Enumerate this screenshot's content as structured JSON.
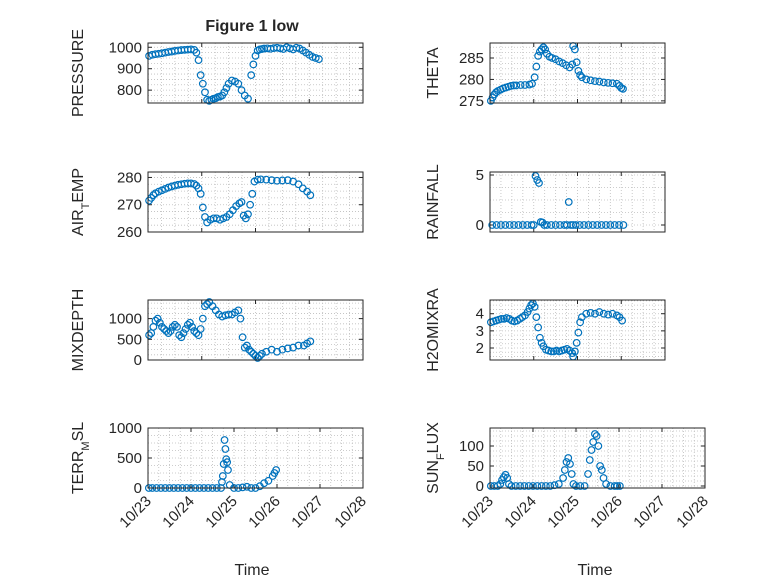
{
  "figure_title": "Figure 1 low",
  "colors": {
    "marker": "#0072BD",
    "axis": "#262626",
    "grid": "#bdbdbd"
  },
  "chart_data": [
    {
      "type": "scatter",
      "ylabel": "PRESSURE",
      "xlim": [
        "10/23",
        "10/27"
      ],
      "ylim": [
        740,
        1020
      ],
      "yticks": [
        "800",
        "900",
        "1000"
      ],
      "ytick_values": [
        800,
        900,
        1000
      ],
      "xticks": [
        "10/23",
        "10/24",
        "10/25",
        "10/26",
        "10/27"
      ],
      "grid": true,
      "x": [
        0.02,
        0.08,
        0.14,
        0.2,
        0.26,
        0.32,
        0.38,
        0.44,
        0.5,
        0.56,
        0.62,
        0.68,
        0.74,
        0.8,
        0.86,
        0.9,
        0.94,
        0.98,
        1.02,
        1.06,
        1.1,
        1.14,
        1.18,
        1.22,
        1.26,
        1.3,
        1.34,
        1.38,
        1.42,
        1.46,
        1.5,
        1.56,
        1.62,
        1.68,
        1.74,
        1.8,
        1.86,
        1.92,
        1.96,
        2.0,
        2.04,
        2.08,
        2.12,
        2.16,
        2.22,
        2.28,
        2.34,
        2.4,
        2.46,
        2.52,
        2.58,
        2.64,
        2.7,
        2.76,
        2.82,
        2.88,
        2.94,
        3.0,
        3.06,
        3.12,
        3.18
      ],
      "y": [
        960,
        965,
        968,
        970,
        972,
        975,
        978,
        980,
        983,
        985,
        987,
        988,
        989,
        990,
        988,
        975,
        940,
        870,
        830,
        790,
        755,
        750,
        755,
        760,
        762,
        768,
        770,
        775,
        790,
        810,
        830,
        845,
        840,
        830,
        800,
        775,
        760,
        870,
        920,
        960,
        985,
        990,
        992,
        994,
        995,
        993,
        996,
        998,
        995,
        992,
        1000,
        995,
        990,
        998,
        994,
        985,
        975,
        965,
        955,
        950,
        945
      ]
    },
    {
      "type": "scatter",
      "ylabel": "THETA",
      "xlim": [
        "10/23",
        "10/27"
      ],
      "ylim": [
        274.5,
        288.5
      ],
      "yticks": [
        "275",
        "280",
        "285"
      ],
      "ytick_values": [
        275,
        280,
        285
      ],
      "xticks": [
        "10/23",
        "10/24",
        "10/25",
        "10/26",
        "10/27"
      ],
      "grid": true,
      "x": [
        0.02,
        0.06,
        0.1,
        0.14,
        0.18,
        0.24,
        0.3,
        0.36,
        0.42,
        0.48,
        0.54,
        0.6,
        0.7,
        0.8,
        0.9,
        0.96,
        1.02,
        1.06,
        1.1,
        1.14,
        1.18,
        1.22,
        1.26,
        1.3,
        1.36,
        1.42,
        1.5,
        1.58,
        1.66,
        1.74,
        1.82,
        1.88,
        1.9,
        1.94,
        1.98,
        2.02,
        2.06,
        2.1,
        2.2,
        2.3,
        2.4,
        2.5,
        2.6,
        2.7,
        2.8,
        2.9,
        2.96,
        3.0,
        3.04
      ],
      "y": [
        275,
        275.8,
        276.5,
        277,
        277.3,
        277.6,
        277.9,
        278.1,
        278.3,
        278.5,
        278.6,
        278.6,
        278.7,
        278.7,
        278.8,
        279,
        280.5,
        283,
        285.5,
        286.5,
        287,
        287.5,
        287,
        286,
        285.3,
        285,
        284.7,
        284.2,
        283.8,
        283.3,
        282.8,
        283.5,
        287.8,
        287,
        284,
        282,
        281,
        280.5,
        280,
        279.8,
        279.6,
        279.5,
        279.3,
        279.2,
        279.1,
        279,
        278.5,
        278,
        277.8
      ]
    },
    {
      "type": "scatter",
      "ylabel": "AIR_TEMP",
      "xlim": [
        "10/23",
        "10/27"
      ],
      "ylim": [
        260,
        282
      ],
      "yticks": [
        "260",
        "270",
        "280"
      ],
      "ytick_values": [
        260,
        270,
        280
      ],
      "xticks": [
        "10/23",
        "10/24",
        "10/25",
        "10/26",
        "10/27"
      ],
      "grid": true,
      "x": [
        0.02,
        0.06,
        0.1,
        0.14,
        0.2,
        0.26,
        0.32,
        0.38,
        0.44,
        0.5,
        0.56,
        0.62,
        0.68,
        0.74,
        0.8,
        0.86,
        0.9,
        0.94,
        0.98,
        1.02,
        1.06,
        1.1,
        1.16,
        1.22,
        1.28,
        1.34,
        1.4,
        1.46,
        1.52,
        1.58,
        1.64,
        1.7,
        1.74,
        1.78,
        1.82,
        1.86,
        1.9,
        1.94,
        1.98,
        2.04,
        2.1,
        2.2,
        2.3,
        2.4,
        2.5,
        2.6,
        2.7,
        2.8,
        2.88,
        2.96,
        3.02
      ],
      "y": [
        271.5,
        272.5,
        273.5,
        274.2,
        274.8,
        275.3,
        275.8,
        276.3,
        276.7,
        277,
        277.3,
        277.5,
        277.7,
        277.8,
        277.8,
        277.6,
        277,
        276,
        274,
        269,
        265.5,
        263.5,
        264.5,
        265,
        265,
        264.5,
        265,
        265.5,
        266.5,
        268,
        269.5,
        270.5,
        271,
        266,
        265,
        266.5,
        270,
        274,
        278.5,
        279.2,
        279.3,
        279.2,
        279,
        278.8,
        278.9,
        279,
        278.5,
        277.5,
        276,
        274.8,
        273.5
      ]
    },
    {
      "type": "scatter",
      "ylabel": "RAINFALL",
      "xlim": [
        "10/23",
        "10/27"
      ],
      "ylim": [
        -0.7,
        5.3
      ],
      "yticks": [
        "0",
        "5"
      ],
      "ytick_values": [
        0,
        5
      ],
      "xticks": [
        "10/23",
        "10/24",
        "10/25",
        "10/26",
        "10/27"
      ],
      "grid": true,
      "x": [
        0.05,
        0.15,
        0.25,
        0.35,
        0.45,
        0.55,
        0.65,
        0.75,
        0.85,
        0.95,
        1.0,
        1.04,
        1.08,
        1.12,
        1.16,
        1.2,
        1.24,
        1.3,
        1.4,
        1.5,
        1.6,
        1.7,
        1.76,
        1.8,
        1.85,
        1.9,
        1.96,
        2.05,
        2.15,
        2.25,
        2.35,
        2.45,
        2.55,
        2.65,
        2.75,
        2.85,
        2.95,
        3.05
      ],
      "y": [
        0,
        0,
        0,
        0,
        0,
        0,
        0,
        0,
        0,
        0,
        0,
        4.9,
        4.5,
        4.2,
        0.3,
        0.25,
        0,
        0,
        0,
        0,
        0,
        0,
        0,
        2.3,
        0,
        0,
        0,
        0,
        0,
        0,
        0,
        0,
        0,
        0,
        0,
        0,
        0,
        0
      ]
    },
    {
      "type": "scatter",
      "ylabel": "MIXDEPTH",
      "xlim": [
        "10/23",
        "10/27"
      ],
      "ylim": [
        0,
        1450
      ],
      "yticks": [
        "0",
        "500",
        "1000"
      ],
      "ytick_values": [
        0,
        500,
        1000
      ],
      "xticks": [
        "10/23",
        "10/24",
        "10/25",
        "10/26",
        "10/27"
      ],
      "grid": true,
      "x": [
        0.02,
        0.06,
        0.1,
        0.14,
        0.18,
        0.22,
        0.26,
        0.3,
        0.34,
        0.38,
        0.42,
        0.46,
        0.5,
        0.54,
        0.58,
        0.62,
        0.66,
        0.7,
        0.74,
        0.78,
        0.82,
        0.86,
        0.9,
        0.94,
        0.98,
        1.02,
        1.06,
        1.1,
        1.14,
        1.2,
        1.26,
        1.32,
        1.38,
        1.44,
        1.5,
        1.56,
        1.62,
        1.68,
        1.72,
        1.76,
        1.8,
        1.84,
        1.88,
        1.92,
        1.96,
        2.0,
        2.04,
        2.08,
        2.12,
        2.2,
        2.3,
        2.4,
        2.5,
        2.6,
        2.7,
        2.8,
        2.9,
        2.96,
        3.02
      ],
      "y": [
        600,
        650,
        800,
        950,
        1000,
        900,
        800,
        750,
        700,
        650,
        700,
        800,
        850,
        800,
        600,
        550,
        650,
        750,
        850,
        900,
        800,
        700,
        650,
        600,
        750,
        1000,
        1300,
        1350,
        1400,
        1300,
        1200,
        1100,
        1050,
        1080,
        1100,
        1100,
        1150,
        1200,
        1000,
        550,
        300,
        350,
        250,
        200,
        150,
        100,
        50,
        100,
        150,
        200,
        250,
        200,
        250,
        280,
        300,
        350,
        350,
        400,
        450
      ]
    },
    {
      "type": "scatter",
      "ylabel": "H2OMIXRA",
      "xlim": [
        "10/23",
        "10/27"
      ],
      "ylim": [
        1.3,
        4.8
      ],
      "yticks": [
        "2",
        "3",
        "4"
      ],
      "ytick_values": [
        2,
        3,
        4
      ],
      "xticks": [
        "10/23",
        "10/24",
        "10/25",
        "10/26",
        "10/27"
      ],
      "grid": true,
      "x": [
        0.02,
        0.08,
        0.14,
        0.2,
        0.26,
        0.32,
        0.38,
        0.44,
        0.5,
        0.56,
        0.62,
        0.68,
        0.74,
        0.8,
        0.86,
        0.9,
        0.94,
        0.98,
        1.02,
        1.06,
        1.1,
        1.14,
        1.18,
        1.22,
        1.28,
        1.34,
        1.4,
        1.46,
        1.52,
        1.58,
        1.64,
        1.7,
        1.76,
        1.82,
        1.88,
        1.9,
        1.94,
        1.98,
        2.02,
        2.06,
        2.1,
        2.2,
        2.3,
        2.4,
        2.5,
        2.6,
        2.7,
        2.8,
        2.9,
        2.96,
        3.02
      ],
      "y": [
        3.5,
        3.55,
        3.6,
        3.65,
        3.7,
        3.7,
        3.75,
        3.7,
        3.6,
        3.55,
        3.6,
        3.7,
        3.8,
        3.9,
        4.1,
        4.3,
        4.5,
        4.6,
        4.4,
        3.8,
        3.2,
        2.6,
        2.3,
        2.1,
        1.9,
        1.85,
        1.8,
        1.8,
        1.85,
        1.8,
        1.85,
        1.9,
        1.95,
        1.85,
        1.7,
        1.5,
        1.8,
        2.3,
        2.9,
        3.5,
        3.8,
        4.0,
        4.05,
        4.0,
        4.1,
        4.0,
        3.95,
        4.0,
        3.9,
        3.8,
        3.6
      ]
    },
    {
      "type": "scatter",
      "ylabel": "TERR_MSL",
      "xlim": [
        "10/23",
        "10/28"
      ],
      "ylim": [
        0,
        1000
      ],
      "yticks": [
        "0",
        "500",
        "1000"
      ],
      "ytick_values": [
        0,
        500,
        1000
      ],
      "xticks": [
        "10/23",
        "10/24",
        "10/25",
        "10/26",
        "10/27",
        "10/28"
      ],
      "grid": true,
      "x": [
        0.02,
        0.1,
        0.2,
        0.3,
        0.4,
        0.5,
        0.6,
        0.7,
        0.8,
        0.9,
        1.0,
        1.1,
        1.2,
        1.3,
        1.4,
        1.5,
        1.6,
        1.7,
        1.72,
        1.74,
        1.76,
        1.78,
        1.8,
        1.82,
        1.84,
        1.86,
        1.9,
        2.0,
        2.1,
        2.2,
        2.3,
        2.4,
        2.5,
        2.6,
        2.7,
        2.8,
        2.9,
        2.94,
        2.98
      ],
      "y": [
        0,
        0,
        0,
        0,
        0,
        0,
        0,
        0,
        0,
        0,
        0,
        0,
        0,
        0,
        0,
        0,
        0,
        0,
        100,
        200,
        400,
        800,
        650,
        480,
        430,
        300,
        50,
        0,
        0,
        10,
        20,
        0,
        0,
        30,
        80,
        120,
        200,
        250,
        300
      ]
    },
    {
      "type": "scatter",
      "ylabel": "SUN_FLUX",
      "xlim": [
        "10/23",
        "10/28"
      ],
      "ylim": [
        -5,
        145
      ],
      "yticks": [
        "0",
        "50",
        "100"
      ],
      "ytick_values": [
        0,
        50,
        100
      ],
      "xticks": [
        "10/23",
        "10/24",
        "10/25",
        "10/26",
        "10/27",
        "10/28"
      ],
      "grid": true,
      "x": [
        0.02,
        0.1,
        0.18,
        0.24,
        0.28,
        0.32,
        0.36,
        0.4,
        0.44,
        0.5,
        0.6,
        0.7,
        0.8,
        0.9,
        1.0,
        1.1,
        1.2,
        1.3,
        1.4,
        1.5,
        1.6,
        1.7,
        1.74,
        1.78,
        1.82,
        1.86,
        1.9,
        1.94,
        2.0,
        2.1,
        2.2,
        2.28,
        2.32,
        2.36,
        2.4,
        2.44,
        2.48,
        2.52,
        2.56,
        2.6,
        2.64,
        2.7,
        2.8,
        2.9,
        2.96,
        3.02
      ],
      "y": [
        0,
        0,
        0,
        5,
        15,
        22,
        28,
        20,
        5,
        0,
        0,
        0,
        0,
        0,
        0,
        0,
        0,
        0,
        0,
        2,
        5,
        20,
        40,
        60,
        70,
        55,
        30,
        5,
        0,
        0,
        0,
        30,
        65,
        90,
        110,
        130,
        125,
        100,
        50,
        40,
        20,
        5,
        0,
        0,
        0,
        0
      ]
    }
  ]
}
